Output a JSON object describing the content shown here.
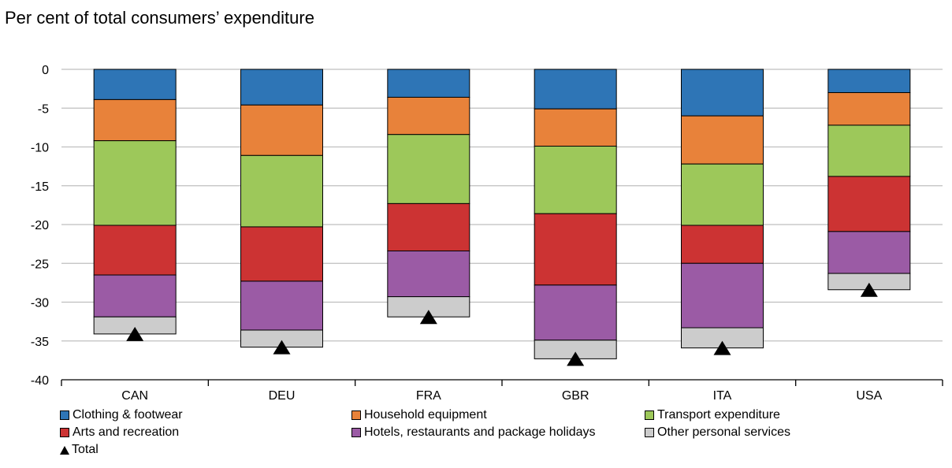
{
  "chart_data": {
    "type": "bar",
    "stacked": true,
    "title": "Per cent of total consumers’ expenditure",
    "ylim": [
      -40,
      0
    ],
    "yticks": [
      0,
      -5,
      -10,
      -15,
      -20,
      -25,
      -30,
      -35,
      -40
    ],
    "grid": true,
    "categories": [
      "CAN",
      "DEU",
      "FRA",
      "GBR",
      "ITA",
      "USA"
    ],
    "series": [
      {
        "name": "Clothing & footwear",
        "color": "#2e75b6",
        "values": [
          -3.9,
          -4.6,
          -3.6,
          -5.1,
          -6.0,
          -3.0
        ]
      },
      {
        "name": "Household equipment",
        "color": "#e8823a",
        "values": [
          -5.3,
          -6.5,
          -4.8,
          -4.8,
          -6.2,
          -4.2
        ]
      },
      {
        "name": "Transport expenditure",
        "color": "#9dc85a",
        "values": [
          -10.9,
          -9.2,
          -8.9,
          -8.7,
          -7.9,
          -6.6
        ]
      },
      {
        "name": "Arts and recreation",
        "color": "#cc3333",
        "values": [
          -6.4,
          -7.0,
          -6.1,
          -9.2,
          -4.9,
          -7.1
        ]
      },
      {
        "name": "Hotels, restaurants and package holidays",
        "color": "#9b5ba5",
        "values": [
          -5.4,
          -6.3,
          -5.9,
          -7.1,
          -8.3,
          -5.4
        ]
      },
      {
        "name": "Other personal services",
        "color": "#cccccc",
        "values": [
          -2.2,
          -2.2,
          -2.6,
          -2.4,
          -2.6,
          -2.1
        ]
      }
    ],
    "total": {
      "name": "Total",
      "values": [
        -34.1,
        -35.8,
        -31.9,
        -37.3,
        -35.9,
        -28.4
      ]
    },
    "legend_position": "bottom"
  }
}
